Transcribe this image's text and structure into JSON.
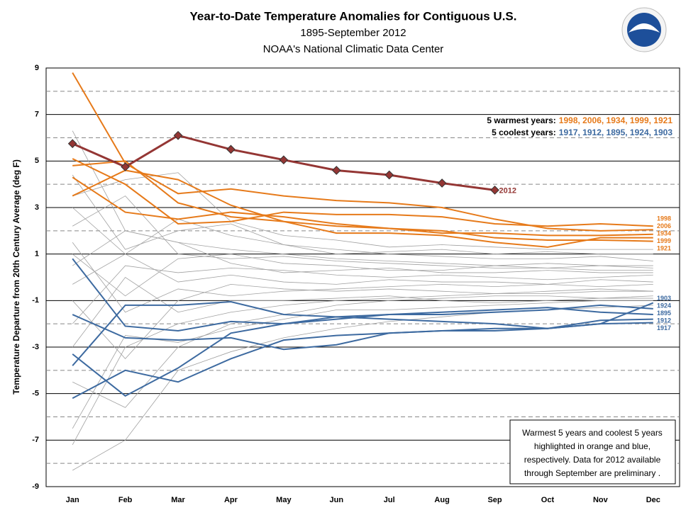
{
  "chart_data": {
    "type": "line",
    "title": "Year-to-Date  Temperature Anomalies for Contiguous  U.S.",
    "subtitle": "1895-September 2012",
    "source": "NOAA's National Climatic Data Center",
    "y_label": "Temperature Departure from 20th Century Average (deg F)",
    "categories": [
      "Jan",
      "Feb",
      "Mar",
      "Apr",
      "May",
      "Jun",
      "Jul",
      "Aug",
      "Sep",
      "Oct",
      "Nov",
      "Dec"
    ],
    "ylim": [
      -9,
      9
    ],
    "yticks": [
      -9,
      -7,
      -5,
      -3,
      -1,
      1,
      3,
      5,
      7,
      9
    ],
    "minor_grid": [
      -8,
      -6,
      -4,
      -2,
      2,
      4,
      6,
      8
    ],
    "warm_label": "5 warmest years:",
    "cool_label": "5 coolest years:",
    "note": [
      "Warmest 5  years and coolest 5 years",
      "highlighted in orange and blue,",
      "respectively. Data for 2012  available",
      "through September are preliminary ."
    ],
    "background": {
      "color": "#a0a0a0",
      "lines": [
        [
          6.3,
          2.0,
          1.5,
          1.2,
          1.0,
          0.8,
          0.7,
          0.6,
          0.5,
          0.6,
          0.5,
          0.4
        ],
        [
          -8.3,
          -7.0,
          -4.0,
          -3.2,
          -2.6,
          -2.2,
          -1.9,
          -1.7,
          -1.5,
          -1.4,
          -1.3,
          -1.2
        ],
        [
          -7.2,
          -3.0,
          -2.0,
          -1.5,
          -1.2,
          -1.0,
          -0.9,
          -0.8,
          -0.7,
          -0.7,
          -0.6,
          -0.6
        ],
        [
          3.0,
          1.0,
          2.5,
          1.8,
          1.4,
          1.2,
          1.0,
          0.9,
          0.8,
          0.8,
          0.9,
          0.7
        ],
        [
          -2.0,
          0.5,
          0.2,
          0.4,
          0.3,
          0.1,
          0.0,
          0.1,
          0.0,
          -0.1,
          0.0,
          0.1
        ],
        [
          1.5,
          -1.5,
          -0.5,
          -0.8,
          -0.6,
          -0.5,
          -0.4,
          -0.3,
          -0.4,
          -0.3,
          -0.4,
          -0.3
        ],
        [
          -4.5,
          -5.6,
          -3.0,
          -2.0,
          -1.6,
          -1.2,
          -1.0,
          -0.9,
          -0.8,
          -0.8,
          -0.9,
          -0.8
        ],
        [
          2.2,
          3.5,
          1.0,
          0.8,
          0.9,
          0.7,
          0.6,
          0.5,
          0.4,
          0.4,
          0.3,
          0.3
        ],
        [
          0.5,
          2.0,
          1.5,
          0.6,
          0.2,
          0.3,
          0.4,
          0.2,
          0.2,
          0.3,
          0.2,
          0.2
        ],
        [
          -1.0,
          -3.5,
          -1.0,
          -0.3,
          -0.5,
          -0.6,
          -0.5,
          -0.6,
          -0.7,
          -0.6,
          -0.5,
          -0.6
        ],
        [
          4.4,
          1.2,
          2.0,
          2.3,
          1.4,
          1.0,
          1.1,
          1.2,
          1.0,
          1.1,
          1.0,
          1.0
        ],
        [
          -3.0,
          0.0,
          -1.5,
          -1.0,
          -1.0,
          -0.9,
          -0.8,
          -1.0,
          -1.1,
          -1.0,
          -0.9,
          -0.9
        ],
        [
          -6.5,
          -2.5,
          -2.8,
          -2.2,
          -1.8,
          -1.4,
          -1.4,
          -1.3,
          -1.2,
          -1.1,
          -1.0,
          -1.0
        ],
        [
          3.5,
          4.2,
          4.5,
          2.4,
          1.8,
          1.6,
          1.3,
          1.4,
          1.3,
          1.2,
          1.2,
          1.2
        ],
        [
          -0.3,
          1.0,
          -0.2,
          0.1,
          -0.2,
          -0.3,
          -0.1,
          -0.2,
          -0.2,
          -0.3,
          -0.1,
          -0.2
        ],
        [
          1.0,
          -0.8,
          0.8,
          1.0,
          0.6,
          0.5,
          0.3,
          0.3,
          0.5,
          0.4,
          0.5,
          0.5
        ]
      ]
    },
    "series": [
      {
        "name": "1998",
        "group": "warm",
        "color": "#e67a1a",
        "values": [
          5.1,
          4.0,
          2.3,
          2.4,
          2.8,
          2.7,
          2.7,
          2.6,
          2.3,
          2.2,
          2.3,
          2.2
        ]
      },
      {
        "name": "2006",
        "group": "warm",
        "color": "#e67a1a",
        "values": [
          8.8,
          4.9,
          3.6,
          3.8,
          3.5,
          3.3,
          3.2,
          3.0,
          2.5,
          2.1,
          2.0,
          2.05
        ]
      },
      {
        "name": "1934",
        "group": "warm",
        "color": "#e67a1a",
        "values": [
          3.5,
          4.6,
          4.2,
          3.1,
          2.4,
          2.2,
          2.1,
          1.9,
          1.9,
          1.8,
          1.8,
          1.85
        ]
      },
      {
        "name": "1999",
        "group": "warm",
        "color": "#e67a1a",
        "values": [
          4.8,
          5.0,
          3.2,
          2.6,
          2.4,
          1.9,
          1.9,
          1.8,
          1.5,
          1.3,
          1.7,
          1.7
        ]
      },
      {
        "name": "1921",
        "group": "warm",
        "color": "#e67a1a",
        "values": [
          4.3,
          2.8,
          2.5,
          2.8,
          2.6,
          2.3,
          2.1,
          2.0,
          1.7,
          1.6,
          1.6,
          1.55
        ]
      },
      {
        "name": "1917",
        "group": "cool",
        "color": "#3d6aa0",
        "values": [
          -3.8,
          -1.2,
          -1.2,
          -1.05,
          -1.6,
          -1.7,
          -1.8,
          -1.9,
          -2.0,
          -2.2,
          -2.0,
          -1.95
        ]
      },
      {
        "name": "1912",
        "group": "cool",
        "color": "#3d6aa0",
        "values": [
          -5.2,
          -4.0,
          -4.5,
          -3.5,
          -2.7,
          -2.5,
          -2.4,
          -2.3,
          -2.2,
          -2.2,
          -1.85,
          -1.8
        ]
      },
      {
        "name": "1895",
        "group": "cool",
        "color": "#3d6aa0",
        "values": [
          -3.3,
          -5.1,
          -3.9,
          -2.4,
          -2.0,
          -1.7,
          -1.6,
          -1.5,
          -1.4,
          -1.3,
          -1.5,
          -1.6
        ]
      },
      {
        "name": "1924",
        "group": "cool",
        "color": "#3d6aa0",
        "values": [
          0.8,
          -2.1,
          -2.3,
          -1.9,
          -2.0,
          -1.8,
          -1.6,
          -1.6,
          -1.5,
          -1.4,
          -1.2,
          -1.35
        ]
      },
      {
        "name": "1903",
        "group": "cool",
        "color": "#3d6aa0",
        "values": [
          -1.6,
          -2.6,
          -2.7,
          -2.6,
          -3.1,
          -2.9,
          -2.4,
          -2.3,
          -2.3,
          -2.2,
          -2.0,
          -1.1
        ]
      },
      {
        "name": "2012",
        "group": "current",
        "color": "#943634",
        "values": [
          5.75,
          4.75,
          6.1,
          5.5,
          5.05,
          4.6,
          4.4,
          4.05,
          3.75,
          null,
          null,
          null
        ]
      }
    ]
  }
}
